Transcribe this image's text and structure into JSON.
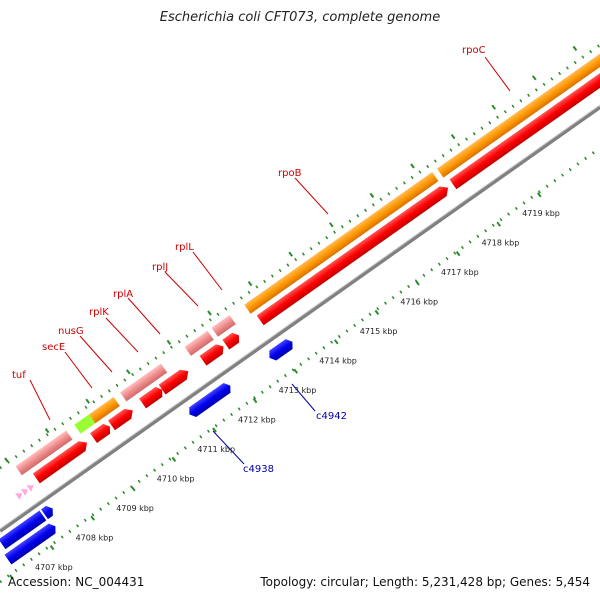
{
  "title": "Escherichia coli CFT073, complete genome",
  "footer": {
    "accession": "Accession: NC_004431",
    "summary": "Topology: circular; Length: 5,231,428 bp; Genes: 5,454"
  },
  "scale_labels": [
    "4707 kbp",
    "4708 kbp",
    "4709 kbp",
    "4710 kbp",
    "4711 kbp",
    "4712 kbp",
    "4713 kbp",
    "4714 kbp",
    "4715 kbp",
    "4716 kbp",
    "4717 kbp",
    "4718 kbp",
    "4719 kbp"
  ],
  "forward_gene_labels": [
    "tuf",
    "secE",
    "nusG",
    "rplK",
    "rplA",
    "rplJ",
    "rplL",
    "rpoB",
    "rpoC"
  ],
  "reverse_gene_labels": [
    "c4938",
    "c4942"
  ],
  "colors": {
    "gene_label_red": "#cc0000",
    "gene_label_blue": "#0000aa",
    "orange": "#ff9900",
    "red": "#ff0000",
    "pink": "#f08c8c",
    "green": "#99ff33",
    "blue": "#0000ee",
    "light_pink": "#ffaadd",
    "backbone": "#808080",
    "ticks": "#2a8a2a"
  }
}
